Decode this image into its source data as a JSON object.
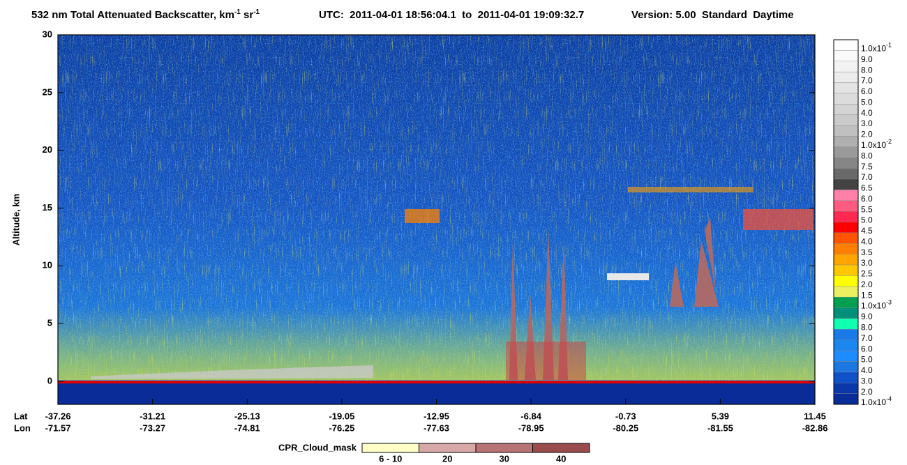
{
  "chart_data": {
    "type": "heatmap",
    "title_parts": [
      "532 nm Total Attenuated Backscatter, km",
      "-1",
      " sr",
      "-1"
    ],
    "subtitle": "UTC:  2011-04-01 18:56:04.1  to  2011-04-01 19:09:32.7",
    "version": "Version: 5.00  Standard  Daytime",
    "ylabel": "Altitude, km",
    "ylim": [
      -2,
      30
    ],
    "yticks": [
      0,
      5,
      10,
      15,
      20,
      25,
      30
    ],
    "xrow_labels": [
      "Lat",
      "Lon"
    ],
    "xticks": [
      {
        "lat": "-37.26",
        "lon": "-71.57"
      },
      {
        "lat": "-31.21",
        "lon": "-73.27"
      },
      {
        "lat": "-25.13",
        "lon": "-74.81"
      },
      {
        "lat": "-19.05",
        "lon": "-76.25"
      },
      {
        "lat": "-12.95",
        "lon": "-77.63"
      },
      {
        "lat": "-6.84",
        "lon": "-78.95"
      },
      {
        "lat": "-0.73",
        "lon": "-80.25"
      },
      {
        "lat": "5.39",
        "lon": "-81.55"
      },
      {
        "lat": "11.45",
        "lon": "-82.86"
      }
    ],
    "colorbar": {
      "labels": [
        {
          "text": "1.0x10",
          "sup": "-1"
        },
        "9.0",
        "8.0",
        "7.0",
        "6.0",
        "5.0",
        "4.0",
        "3.0",
        "2.0",
        {
          "text": "1.0x10",
          "sup": "-2"
        },
        "8.0",
        "7.5",
        "7.0",
        "6.5",
        "6.0",
        "5.5",
        "5.0",
        "4.5",
        "4.0",
        "3.5",
        "3.0",
        "2.5",
        "2.0",
        "1.5",
        {
          "text": "1.0x10",
          "sup": "-3"
        },
        "9.0",
        "8.0",
        "7.0",
        "6.0",
        "5.0",
        "4.0",
        "3.0",
        "2.0",
        {
          "text": "1.0x10",
          "sup": "-4"
        }
      ],
      "colors": [
        "#ffffff",
        "#fafafa",
        "#f3f3f3",
        "#ececec",
        "#e4e4e4",
        "#dcdcdc",
        "#d3d3d3",
        "#cacaca",
        "#c0c0c0",
        "#b0b0b0",
        "#9a9a9a",
        "#868686",
        "#6a6a6a",
        "#444444",
        "#ff80a8",
        "#ff5a80",
        "#ff2850",
        "#ff0000",
        "#ff5500",
        "#ff8000",
        "#ffa500",
        "#ffc800",
        "#ffff00",
        "#ecf060",
        "#00a050",
        "#00907a",
        "#10ffb0",
        "#1a7ae8",
        "#1a86f0",
        "#1e8cff",
        "#1a78e0",
        "#1050c8",
        "#0a38a8",
        "#082c98"
      ]
    },
    "cloud_mask": {
      "title": "CPR_Cloud_mask",
      "labels": [
        "6 - 10",
        "20",
        "30",
        "40"
      ],
      "colors": [
        "#ffffc8",
        "#d8a8a8",
        "#b87474",
        "#9a4c4c"
      ]
    }
  }
}
